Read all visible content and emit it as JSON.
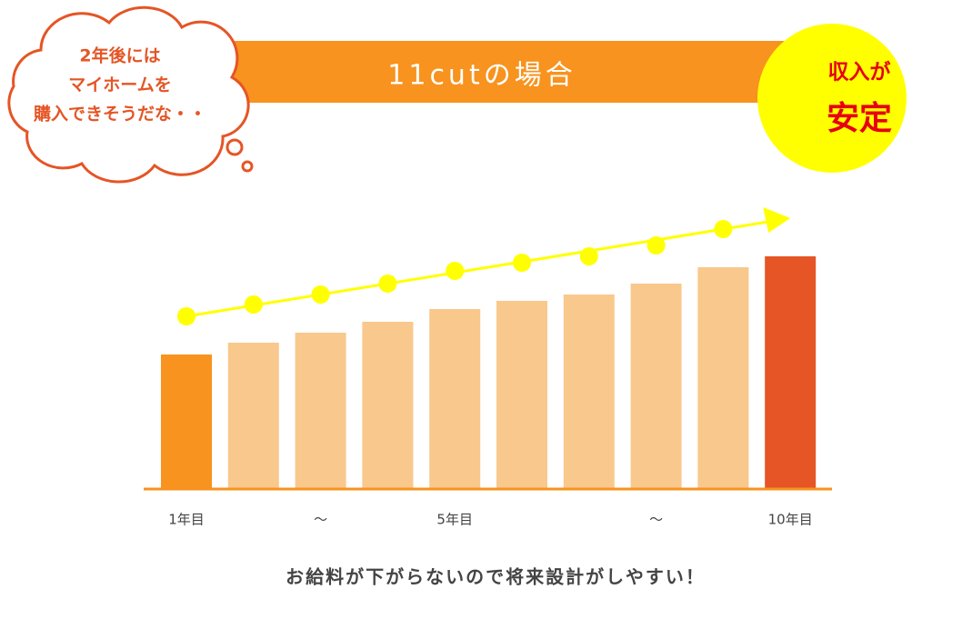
{
  "chart_data": {
    "type": "bar",
    "title": "11cutの場合",
    "categories": [
      "1年目",
      null,
      "〜",
      null,
      "5年目",
      null,
      null,
      "〜",
      null,
      "10年目"
    ],
    "values": [
      147,
      160,
      171,
      183,
      197,
      206,
      213,
      225,
      243,
      255
    ],
    "colors": [
      "#f7931e",
      "#f9c88d",
      "#f9c88d",
      "#f9c88d",
      "#f9c88d",
      "#f9c88d",
      "#f9c88d",
      "#f9c88d",
      "#f9c88d",
      "#e55525"
    ],
    "thought": [
      "2年後には",
      "マイホームを",
      "購入できそうだな・・"
    ],
    "badge": [
      "収入が",
      "安定"
    ],
    "caption": "お給料が下がらないので将来設計がしやすい！"
  }
}
